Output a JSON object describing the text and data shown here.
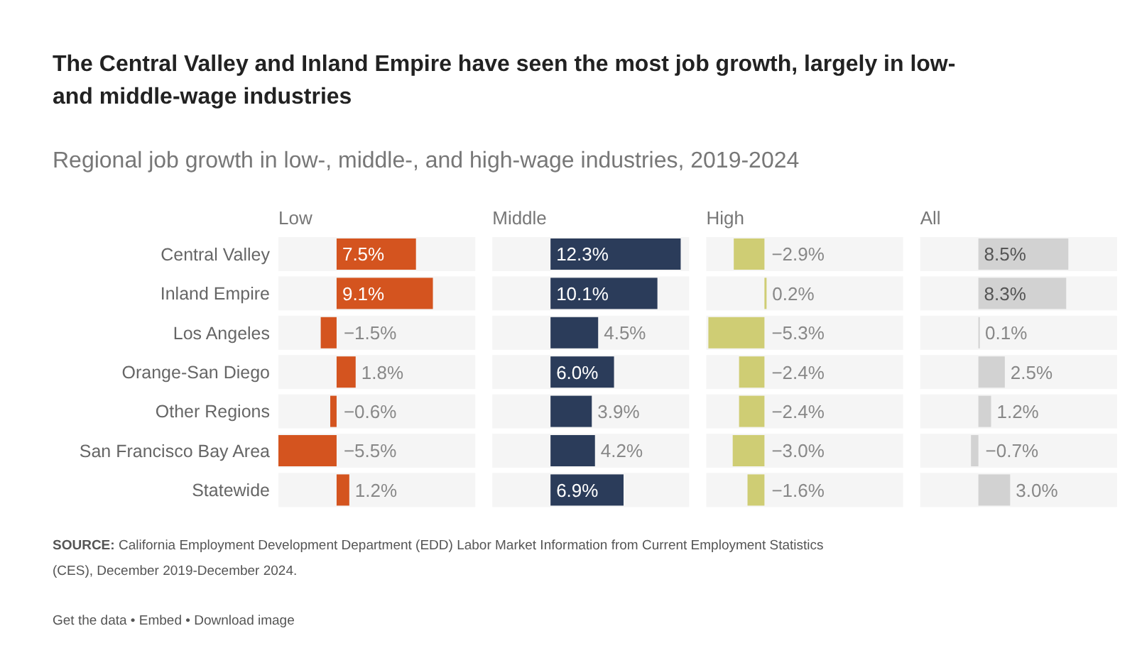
{
  "chart_data": [
    {
      "type": "other",
      "title": "The Central Valley and Inland Empire have seen the most job growth, largely in low- and middle-wage industries",
      "subtitle": "Regional job growth in low-, middle-, and high-wage industries, 2019-2024"
    },
    {
      "type": "bar",
      "orientation": "horizontal",
      "title": "Low",
      "categories": [
        "Central Valley",
        "Inland Empire",
        "Los Angeles",
        "Orange-San Diego",
        "Other Regions",
        "San Francisco Bay Area",
        "Statewide"
      ],
      "tick_labels": "y",
      "series": [
        {
          "color": "#d4541f",
          "values": [
            7.5,
            9.1,
            -1.5,
            1.8,
            -0.6,
            -5.5,
            1.2
          ],
          "value_labels": [
            "7.5%",
            "9.1%",
            "−1.5%",
            "1.8%",
            "−0.6%",
            "−5.5%",
            "1.2%"
          ]
        }
      ]
    },
    {
      "type": "bar",
      "orientation": "horizontal",
      "title": "Middle",
      "categories": [
        null,
        null,
        null,
        null,
        null,
        null,
        null
      ],
      "series": [
        {
          "color": "#2b3c5a",
          "values": [
            12.3,
            10.1,
            4.5,
            6.0,
            3.9,
            4.2,
            6.9
          ],
          "value_labels": [
            "12.3%",
            "10.1%",
            "4.5%",
            "6.0%",
            "3.9%",
            "4.2%",
            "6.9%"
          ]
        }
      ]
    },
    {
      "type": "bar",
      "orientation": "horizontal",
      "title": "High",
      "categories": [
        null,
        null,
        null,
        null,
        null,
        null,
        null
      ],
      "series": [
        {
          "color": "#cfcd74",
          "values": [
            -2.9,
            0.2,
            -5.3,
            -2.4,
            -2.4,
            -3.0,
            -1.6
          ],
          "value_labels": [
            "−2.9%",
            "0.2%",
            "−5.3%",
            "−2.4%",
            "−2.4%",
            "−3.0%",
            "−1.6%"
          ]
        }
      ]
    },
    {
      "type": "bar",
      "orientation": "horizontal",
      "title": "All",
      "categories": [
        null,
        null,
        null,
        null,
        null,
        null,
        null
      ],
      "series": [
        {
          "color": "#d2d2d2",
          "values": [
            8.5,
            8.3,
            0.1,
            2.5,
            1.2,
            -0.7,
            3.0
          ],
          "value_labels": [
            "8.5%",
            "8.3%",
            "0.1%",
            "2.5%",
            "1.2%",
            "−0.7%",
            "3.0%"
          ]
        }
      ]
    },
    {
      "type": "other",
      "annotations": [
        "SOURCE:",
        "California Employment Development Department (EDD) Labor Market Information from Current Employment Statistics (CES), December 2019-December 2024.",
        "Get the data • Embed • Download image"
      ]
    }
  ]
}
